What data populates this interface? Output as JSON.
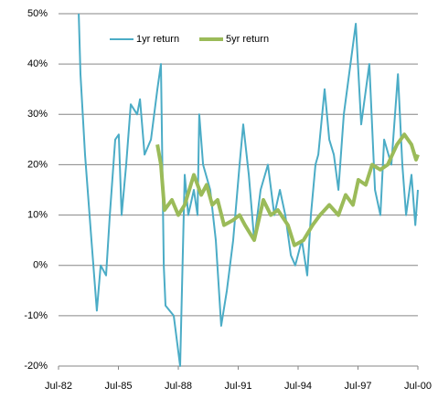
{
  "chart_data": {
    "type": "line",
    "xlim": [
      1982.5,
      2000.5
    ],
    "xticks": [
      {
        "value": 1982.5,
        "label": "Jul-82"
      },
      {
        "value": 1985.5,
        "label": "Jul-85"
      },
      {
        "value": 1988.5,
        "label": "Jul-88"
      },
      {
        "value": 1991.5,
        "label": "Jul-91"
      },
      {
        "value": 1994.5,
        "label": "Jul-94"
      },
      {
        "value": 1997.5,
        "label": "Jul-97"
      },
      {
        "value": 2000.5,
        "label": "Jul-00"
      }
    ],
    "ylim": [
      -20,
      50
    ],
    "yticks": [
      {
        "value": -20,
        "label": "-20%"
      },
      {
        "value": -10,
        "label": "-10%"
      },
      {
        "value": 0,
        "label": "0%"
      },
      {
        "value": 10,
        "label": "10%"
      },
      {
        "value": 20,
        "label": "20%"
      },
      {
        "value": 30,
        "label": "30%"
      },
      {
        "value": 40,
        "label": "40%"
      },
      {
        "value": 50,
        "label": "50%"
      }
    ],
    "grid": true,
    "legend": "top",
    "series": [
      {
        "name": "1yr return",
        "color": "#4bacc6",
        "x": [
          1983.51,
          1983.6,
          1983.83,
          1984.15,
          1984.42,
          1984.61,
          1984.88,
          1985.07,
          1985.34,
          1985.52,
          1985.66,
          1985.89,
          1986.12,
          1986.44,
          1986.58,
          1986.81,
          1987.13,
          1987.45,
          1987.63,
          1987.77,
          1987.86,
          1988.27,
          1988.59,
          1988.82,
          1989.0,
          1989.28,
          1989.46,
          1989.55,
          1989.74,
          1990.1,
          1990.38,
          1990.65,
          1990.93,
          1991.25,
          1991.57,
          1991.75,
          1992.03,
          1992.3,
          1992.62,
          1992.99,
          1993.31,
          1993.59,
          1993.86,
          1994.14,
          1994.36,
          1994.69,
          1994.96,
          1995.14,
          1995.37,
          1995.51,
          1995.83,
          1996.06,
          1996.29,
          1996.52,
          1996.79,
          1997.39,
          1997.66,
          1998.07,
          1998.35,
          1998.62,
          1998.81,
          1999.17,
          1999.5,
          1999.72,
          1999.91,
          2000.18,
          2000.37,
          2000.5
        ],
        "values": [
          50,
          38,
          22,
          5,
          -9,
          0,
          -2,
          10,
          25,
          26,
          10,
          20,
          32,
          30,
          33,
          22,
          25,
          35,
          40,
          0,
          -8,
          -10,
          -20,
          18,
          10,
          15,
          10,
          30,
          20,
          15,
          5,
          -12,
          -5,
          5,
          20,
          28,
          18,
          5,
          15,
          20,
          10,
          15,
          10,
          2,
          0,
          5,
          -2,
          10,
          20,
          22,
          35,
          25,
          22,
          15,
          30,
          48,
          28,
          40,
          15,
          10,
          25,
          20,
          38,
          20,
          10,
          18,
          8,
          15
        ]
      },
      {
        "name": "5yr return",
        "color": "#9bbb59",
        "x": [
          1987.45,
          1987.63,
          1987.81,
          1988.18,
          1988.5,
          1988.82,
          1989.28,
          1989.65,
          1989.92,
          1990.2,
          1990.47,
          1990.79,
          1991.25,
          1991.57,
          1991.84,
          1992.3,
          1992.76,
          1993.13,
          1993.49,
          1993.99,
          1994.31,
          1994.77,
          1995.23,
          1995.6,
          1996.06,
          1996.52,
          1996.88,
          1997.25,
          1997.52,
          1997.89,
          1998.21,
          1998.62,
          1998.99,
          1999.45,
          1999.82,
          2000.18,
          2000.41,
          2000.5
        ],
        "values": [
          24,
          20,
          11,
          13,
          10,
          12,
          18,
          14,
          16,
          12,
          13,
          8,
          9,
          10,
          8,
          5,
          13,
          10,
          11,
          8,
          4,
          5,
          8,
          10,
          12,
          10,
          14,
          12,
          17,
          16,
          20,
          19,
          20,
          24,
          26,
          24,
          21,
          22
        ]
      }
    ]
  }
}
